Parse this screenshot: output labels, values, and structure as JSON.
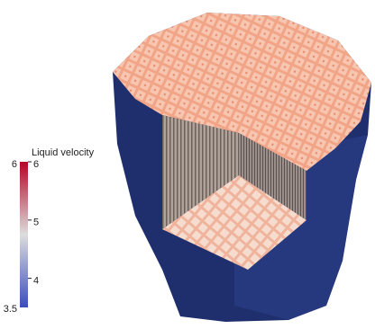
{
  "colorbar": {
    "title": "Liquid velocity",
    "range": [
      3.5,
      6
    ],
    "ticks": [
      4,
      5,
      6
    ]
  }
}
